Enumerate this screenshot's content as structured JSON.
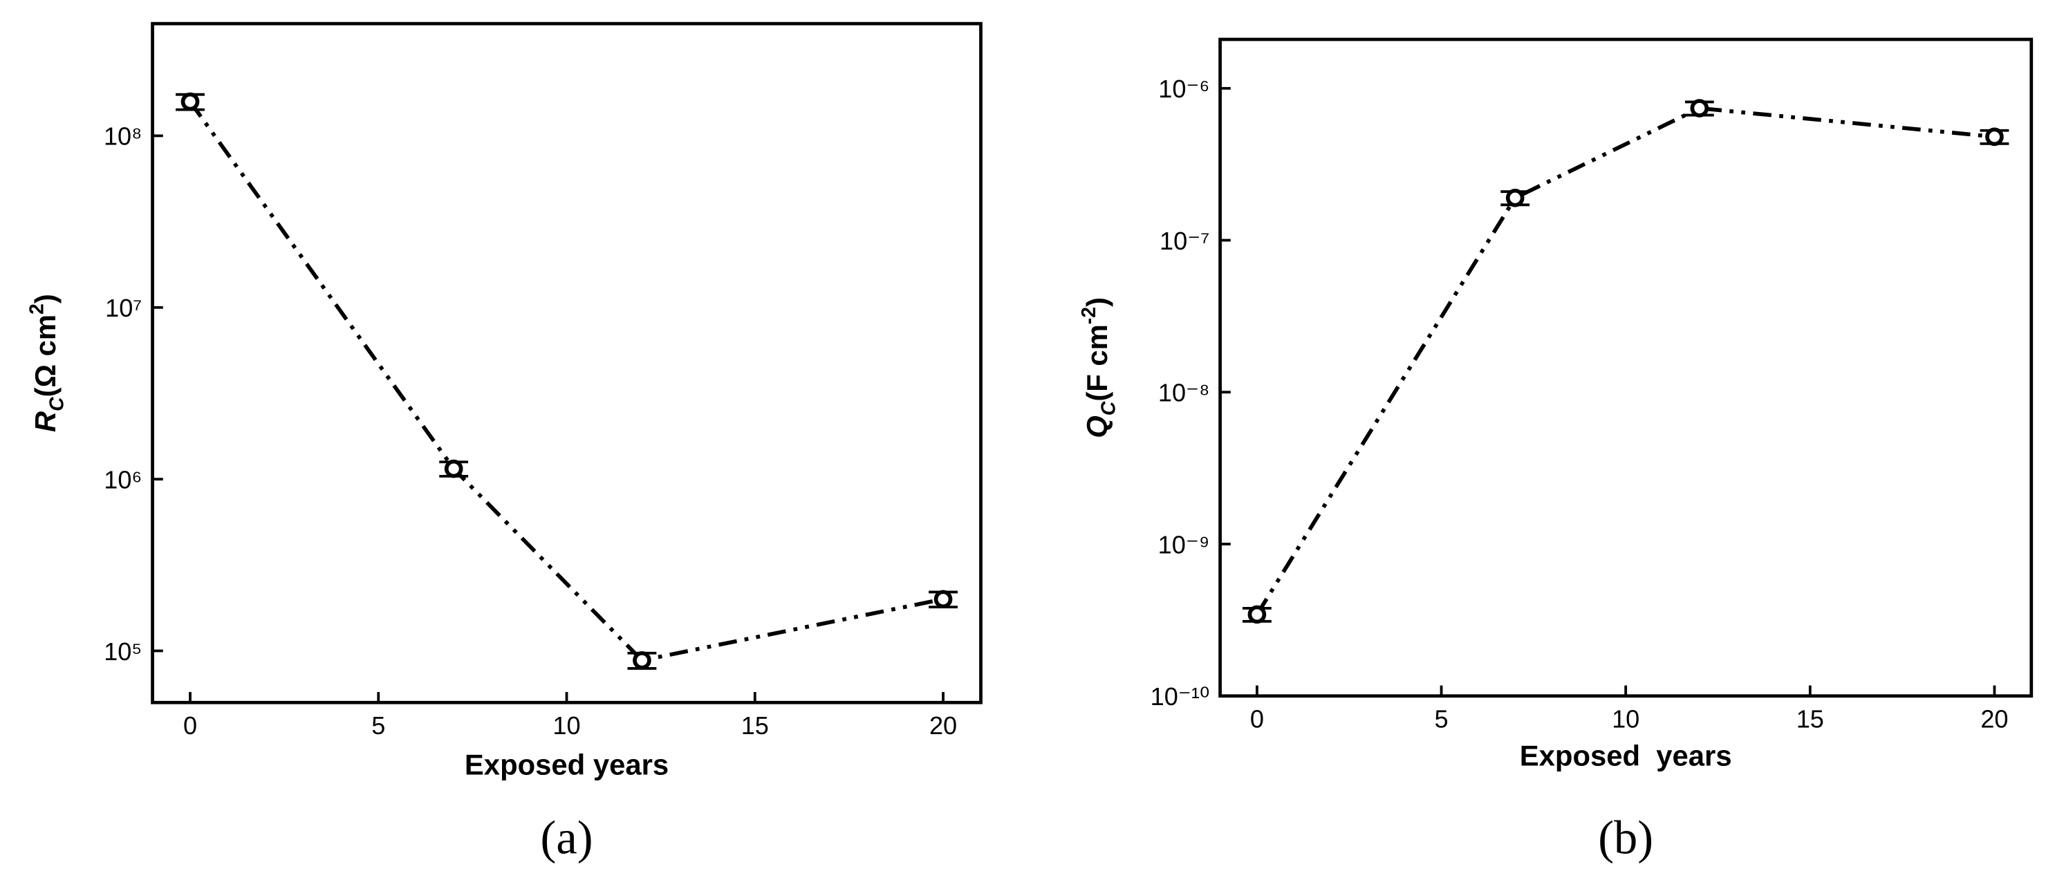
{
  "chart_data": [
    {
      "type": "line",
      "caption": "(a)",
      "xlabel": "Exposed years",
      "ylabel": {
        "main": "R",
        "sub": "C",
        "text": "(Ω cm",
        "sup": "2",
        "end": ")"
      },
      "x": [
        0,
        7,
        12,
        20
      ],
      "series": [
        {
          "color": "#000000",
          "values": [
            158000000,
            1150000,
            88000,
            200000
          ],
          "errors": [
            16000000,
            110000,
            9000,
            20000
          ]
        }
      ],
      "xlim": [
        -1,
        21
      ],
      "xticks": [
        0,
        5,
        10,
        15,
        20
      ],
      "ylim": [
        50000,
        450000000
      ],
      "log_y": true,
      "yticks": [
        {
          "value": 100000,
          "label": "10⁵"
        },
        {
          "value": 1000000,
          "label": "10⁶"
        },
        {
          "value": 10000000,
          "label": "10⁷"
        },
        {
          "value": 100000000,
          "label": "10⁸"
        }
      ]
    },
    {
      "type": "line",
      "caption": "(b)",
      "xlabel": "Exposed  years",
      "ylabel": {
        "main": "Q",
        "sub": "C",
        "text": "(F cm",
        "sup": "-2",
        "end": ")"
      },
      "x": [
        0,
        7,
        12,
        20
      ],
      "series": [
        {
          "color": "#000000",
          "values": [
            3.44e-10,
            1.9e-07,
            7.4e-07,
            4.8e-07
          ],
          "errors": [
            3.4e-11,
            1.9e-08,
            7.4e-08,
            4.8e-08
          ]
        }
      ],
      "xlim": [
        -1,
        21
      ],
      "xticks": [
        0,
        5,
        10,
        15,
        20
      ],
      "ylim": [
        1e-10,
        2.1e-06
      ],
      "log_y": true,
      "yticks": [
        {
          "value": 1e-10,
          "label": "10⁻¹⁰"
        },
        {
          "value": 1e-09,
          "label": "10⁻⁹"
        },
        {
          "value": 1e-08,
          "label": "10⁻⁸"
        },
        {
          "value": 1e-07,
          "label": "10⁻⁷"
        },
        {
          "value": 1e-06,
          "label": "10⁻⁶"
        }
      ]
    }
  ]
}
